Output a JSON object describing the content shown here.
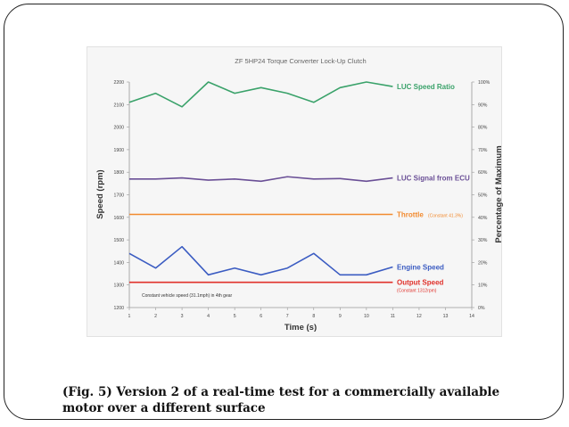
{
  "caption": {
    "line1": "(Fig. 5) Version 2 of a real-time test for a commercially available",
    "line2": "motor over a different surface"
  },
  "chart_data": {
    "type": "line",
    "title": "ZF 5HP24 Torque Converter Lock-Up Clutch",
    "xlabel": "Time (s)",
    "ylabel": "Speed (rpm)",
    "y2label": "Percentage of Maximum",
    "x": [
      1,
      2,
      3,
      4,
      5,
      6,
      7,
      8,
      9,
      10,
      11
    ],
    "xlim": [
      1,
      14
    ],
    "xticks": [
      "1",
      "2",
      "3",
      "4",
      "5",
      "6",
      "7",
      "8",
      "9",
      "10",
      "11",
      "12",
      "13",
      "14"
    ],
    "ylim": [
      1200,
      2200
    ],
    "yticks": [
      "1200",
      "1300",
      "1400",
      "1500",
      "1600",
      "1700",
      "1800",
      "1900",
      "2000",
      "2100",
      "2200"
    ],
    "y2lim": [
      0,
      100
    ],
    "y2ticks": [
      "0%",
      "10%",
      "20%",
      "30%",
      "40%",
      "50%",
      "60%",
      "70%",
      "80%",
      "90%",
      "100%"
    ],
    "grid": false,
    "annotation": "Constant vehicle speed (31.1mph) in 4th gear",
    "series": [
      {
        "name": "LUC Speed Ratio",
        "note": "",
        "color": "#3aa26a",
        "values": [
          2110,
          2150,
          2090,
          2200,
          2150,
          2175,
          2150,
          2110,
          2175,
          2200,
          2180
        ]
      },
      {
        "name": "LUC Signal from ECU",
        "note": "",
        "color": "#6a4f96",
        "values": [
          1770,
          1770,
          1775,
          1765,
          1770,
          1760,
          1780,
          1770,
          1772,
          1760,
          1775
        ]
      },
      {
        "name": "Throttle",
        "note": "(Constant 41.3%)",
        "color": "#f28a2e",
        "values": [
          1613,
          1613,
          1613,
          1613,
          1613,
          1613,
          1613,
          1613,
          1613,
          1613,
          1613
        ]
      },
      {
        "name": "Engine Speed",
        "note": "",
        "color": "#3b5cc2",
        "values": [
          1440,
          1375,
          1470,
          1345,
          1375,
          1345,
          1375,
          1440,
          1345,
          1345,
          1380
        ]
      },
      {
        "name": "Output Speed",
        "note": "(Constant 1312rpm)",
        "color": "#e0312b",
        "values": [
          1312,
          1312,
          1312,
          1312,
          1312,
          1312,
          1312,
          1312,
          1312,
          1312,
          1312
        ]
      }
    ]
  }
}
